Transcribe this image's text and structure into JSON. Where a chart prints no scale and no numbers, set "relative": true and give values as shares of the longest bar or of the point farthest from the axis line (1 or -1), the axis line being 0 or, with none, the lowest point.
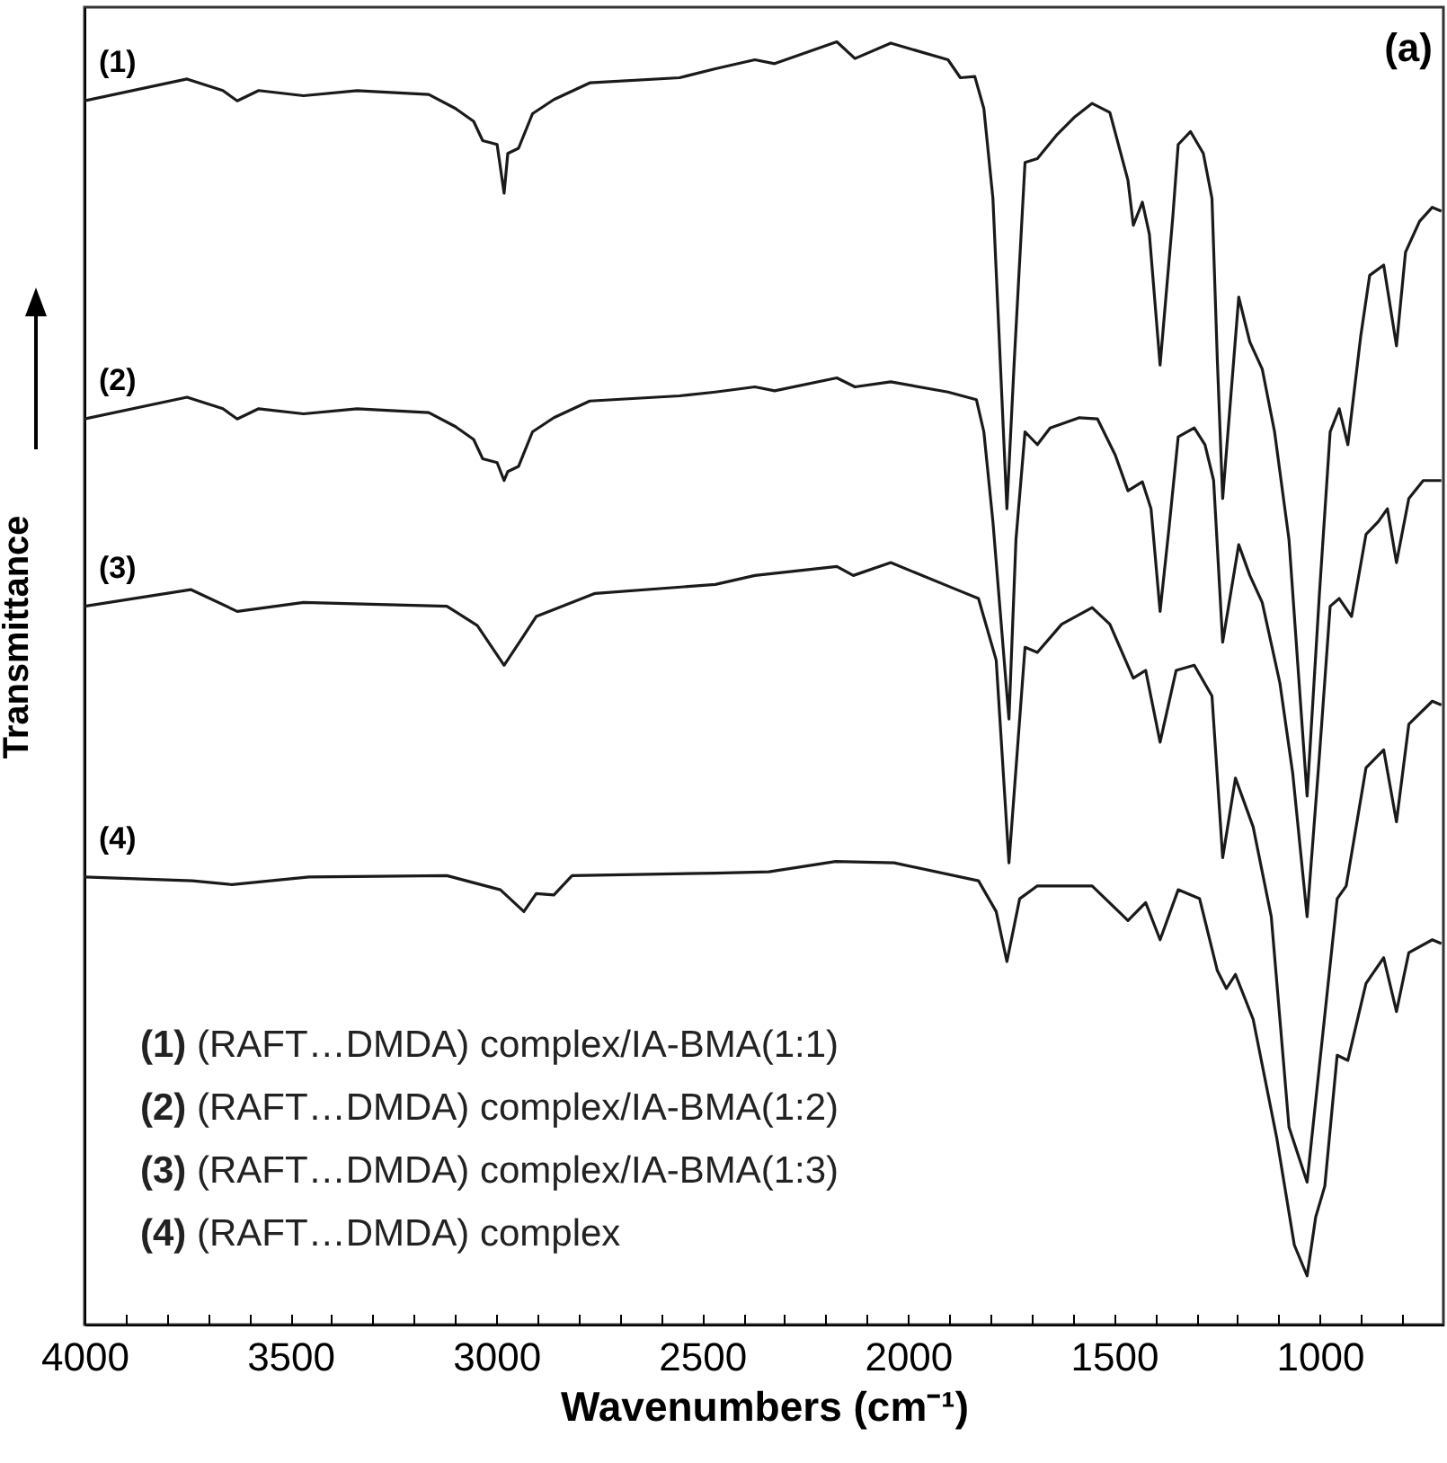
{
  "chart_data": {
    "type": "line",
    "relative": true,
    "xlabel": "Wavenumbers (cm⁻¹)",
    "ylabel": "Transmittance",
    "xlim": [
      4000,
      700
    ],
    "xticks": [
      4000,
      {
        "value": 3900,
        "label": null
      },
      {
        "value": 3800,
        "label": null
      },
      {
        "value": 3700,
        "label": null
      },
      {
        "value": 3600,
        "label": null
      },
      3500,
      {
        "value": 3400,
        "label": null
      },
      {
        "value": 3300,
        "label": null
      },
      {
        "value": 3200,
        "label": null
      },
      {
        "value": 3100,
        "label": null
      },
      3000,
      {
        "value": 2900,
        "label": null
      },
      {
        "value": 2800,
        "label": null
      },
      {
        "value": 2700,
        "label": null
      },
      {
        "value": 2600,
        "label": null
      },
      2500,
      {
        "value": 2400,
        "label": null
      },
      {
        "value": 2300,
        "label": null
      },
      {
        "value": 2200,
        "label": null
      },
      {
        "value": 2100,
        "label": null
      },
      2000,
      {
        "value": 1900,
        "label": null
      },
      {
        "value": 1800,
        "label": null
      },
      {
        "value": 1700,
        "label": null
      },
      {
        "value": 1600,
        "label": null
      },
      1500,
      {
        "value": 1400,
        "label": null
      },
      {
        "value": 1300,
        "label": null
      },
      {
        "value": 1200,
        "label": null
      },
      {
        "value": 1100,
        "label": null
      },
      1000,
      {
        "value": 900,
        "label": null
      },
      {
        "value": 800,
        "label": null
      }
    ],
    "annotations": [
      "(a)",
      "(1) (RAFT…DMDA) complex/IA-BMA(1:1)",
      "(2) (RAFT…DMDA) complex/IA-BMA(1:2)",
      "(3) (RAFT…DMDA) complex/IA-BMA(1:3)",
      "(4) (RAFT…DMDA) complex"
    ],
    "series": [
      {
        "name": "(1)",
        "color": "#1a1a1a",
        "x": [
          4000,
          3751,
          3664,
          3629,
          3577,
          3468,
          3338,
          3164,
          3099,
          3055,
          3033,
          2998,
          2981,
          2972,
          2946,
          2912,
          2860,
          2773,
          2555,
          2468,
          2372,
          2324,
          2173,
          2129,
          2042,
          1903,
          1873,
          1838,
          1816,
          1794,
          1760,
          1742,
          1716,
          1686,
          1640,
          1597,
          1553,
          1510,
          1466,
          1453,
          1431,
          1414,
          1388,
          1357,
          1344,
          1314,
          1283,
          1262,
          1249,
          1236,
          1197,
          1170,
          1140,
          1110,
          1075,
          1031,
          1001,
          975,
          953,
          932,
          901,
          879,
          845,
          814,
          792,
          758,
          727,
          705
        ],
        "values": [
          0.954,
          0.971,
          0.962,
          0.954,
          0.962,
          0.958,
          0.962,
          0.959,
          0.948,
          0.938,
          0.923,
          0.92,
          0.882,
          0.913,
          0.917,
          0.944,
          0.955,
          0.968,
          0.972,
          0.979,
          0.986,
          0.983,
          1,
          0.987,
          0.999,
          0.986,
          0.972,
          0.973,
          0.948,
          0.878,
          0.636,
          0.752,
          0.906,
          0.909,
          0.927,
          0.941,
          0.952,
          0.945,
          0.892,
          0.857,
          0.875,
          0.85,
          0.748,
          0.864,
          0.92,
          0.93,
          0.913,
          0.878,
          0.752,
          0.644,
          0.801,
          0.766,
          0.745,
          0.696,
          0.612,
          0.412,
          0.57,
          0.696,
          0.714,
          0.686,
          0.77,
          0.818,
          0.826,
          0.763,
          0.836,
          0.86,
          0.871,
          0.868
        ]
      },
      {
        "name": "(2)",
        "color": "#1a1a1a",
        "x": [
          4000,
          3751,
          3664,
          3629,
          3577,
          3468,
          3338,
          3164,
          3099,
          3055,
          3033,
          2998,
          2981,
          2972,
          2946,
          2912,
          2860,
          2773,
          2555,
          2468,
          2372,
          2324,
          2173,
          2129,
          2042,
          1903,
          1834,
          1816,
          1794,
          1755,
          1738,
          1716,
          1686,
          1655,
          1584,
          1540,
          1497,
          1466,
          1431,
          1410,
          1388,
          1366,
          1344,
          1305,
          1279,
          1258,
          1236,
          1197,
          1170,
          1140,
          1097,
          1066,
          1031,
          1001,
          975,
          953,
          923,
          888,
          858,
          836,
          814,
          784,
          749,
          705
        ],
        "values": [
          0.706,
          0.723,
          0.714,
          0.706,
          0.714,
          0.71,
          0.714,
          0.711,
          0.7,
          0.69,
          0.675,
          0.672,
          0.658,
          0.665,
          0.669,
          0.696,
          0.707,
          0.72,
          0.724,
          0.727,
          0.731,
          0.728,
          0.738,
          0.731,
          0.735,
          0.727,
          0.721,
          0.696,
          0.626,
          0.472,
          0.612,
          0.696,
          0.686,
          0.699,
          0.707,
          0.706,
          0.678,
          0.65,
          0.657,
          0.636,
          0.556,
          0.622,
          0.692,
          0.699,
          0.686,
          0.658,
          0.532,
          0.608,
          0.584,
          0.563,
          0.5,
          0.43,
          0.318,
          0.444,
          0.56,
          0.566,
          0.552,
          0.616,
          0.626,
          0.636,
          0.594,
          0.644,
          0.658,
          0.658
        ]
      },
      {
        "name": "(3)",
        "color": "#1a1a1a",
        "x": [
          4000,
          3742,
          3629,
          3468,
          3120,
          3046,
          2981,
          2946,
          2903,
          2760,
          2468,
          2372,
          2173,
          2133,
          2042,
          1890,
          1829,
          1786,
          1755,
          1716,
          1686,
          1627,
          1553,
          1510,
          1453,
          1423,
          1388,
          1349,
          1305,
          1262,
          1236,
          1205,
          1162,
          1118,
          1075,
          1031,
          1001,
          958,
          936,
          888,
          845,
          814,
          784,
          727,
          705
        ],
        "values": [
          0.56,
          0.573,
          0.556,
          0.563,
          0.56,
          0.545,
          0.514,
          0.531,
          0.552,
          0.57,
          0.577,
          0.584,
          0.591,
          0.584,
          0.594,
          0.574,
          0.566,
          0.518,
          0.36,
          0.528,
          0.524,
          0.546,
          0.559,
          0.546,
          0.504,
          0.51,
          0.454,
          0.51,
          0.514,
          0.49,
          0.364,
          0.426,
          0.388,
          0.318,
          0.154,
          0.111,
          0.202,
          0.332,
          0.342,
          0.434,
          0.448,
          0.392,
          0.468,
          0.486,
          0.483
        ]
      },
      {
        "name": "(4)",
        "color": "#1a1a1a",
        "x": [
          4000,
          3738,
          3642,
          3455,
          3120,
          2990,
          2933,
          2903,
          2860,
          2816,
          2468,
          2338,
          2176,
          2034,
          1829,
          1786,
          1760,
          1729,
          1686,
          1553,
          1466,
          1423,
          1388,
          1344,
          1292,
          1249,
          1227,
          1205,
          1162,
          1105,
          1062,
          1031,
          1010,
          988,
          958,
          932,
          888,
          845,
          814,
          784,
          727,
          705
        ],
        "values": [
          0.349,
          0.346,
          0.343,
          0.349,
          0.35,
          0.339,
          0.322,
          0.336,
          0.335,
          0.35,
          0.352,
          0.353,
          0.361,
          0.36,
          0.346,
          0.322,
          0.283,
          0.332,
          0.342,
          0.342,
          0.315,
          0.329,
          0.3,
          0.339,
          0.332,
          0.276,
          0.262,
          0.273,
          0.238,
          0.146,
          0.062,
          0.038,
          0.084,
          0.108,
          0.21,
          0.206,
          0.266,
          0.286,
          0.244,
          0.29,
          0.3,
          0.297
        ]
      }
    ]
  }
}
